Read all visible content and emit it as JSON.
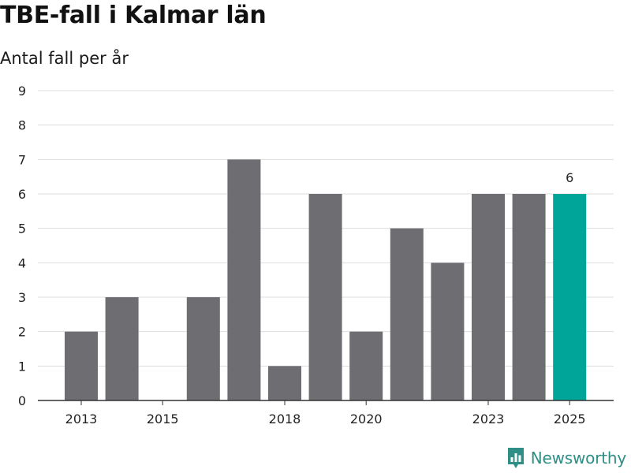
{
  "header": {
    "title": "TBE-fall i Kalmar län",
    "subtitle": "Antal fall per år"
  },
  "brand": {
    "name": "Newsworthy",
    "icon": "newsworthy-logo-icon",
    "color": "#2f8f86"
  },
  "colors": {
    "bar": "#6e6d72",
    "highlight": "#00a59a",
    "grid": "#dddddd",
    "axis": "#333333"
  },
  "chart_data": {
    "type": "bar",
    "title": "TBE-fall i Kalmar län",
    "subtitle": "Antal fall per år",
    "xlabel": "",
    "ylabel": "",
    "categories": [
      "2013",
      "2014",
      "2015",
      "2016",
      "2017",
      "2018",
      "2019",
      "2020",
      "2021",
      "2022",
      "2023",
      "2024",
      "2025"
    ],
    "values": [
      2,
      3,
      0,
      3,
      7,
      1,
      6,
      2,
      5,
      4,
      6,
      6,
      6
    ],
    "x_tick_labels": [
      "2013",
      "2015",
      "2018",
      "2020",
      "2023",
      "2025"
    ],
    "y_ticks": [
      0,
      1,
      2,
      3,
      4,
      5,
      6,
      7,
      8,
      9
    ],
    "ylim": [
      0,
      9
    ],
    "grid": true,
    "highlight_index": 12,
    "data_labels": [
      {
        "index": 12,
        "text": "6"
      }
    ]
  }
}
